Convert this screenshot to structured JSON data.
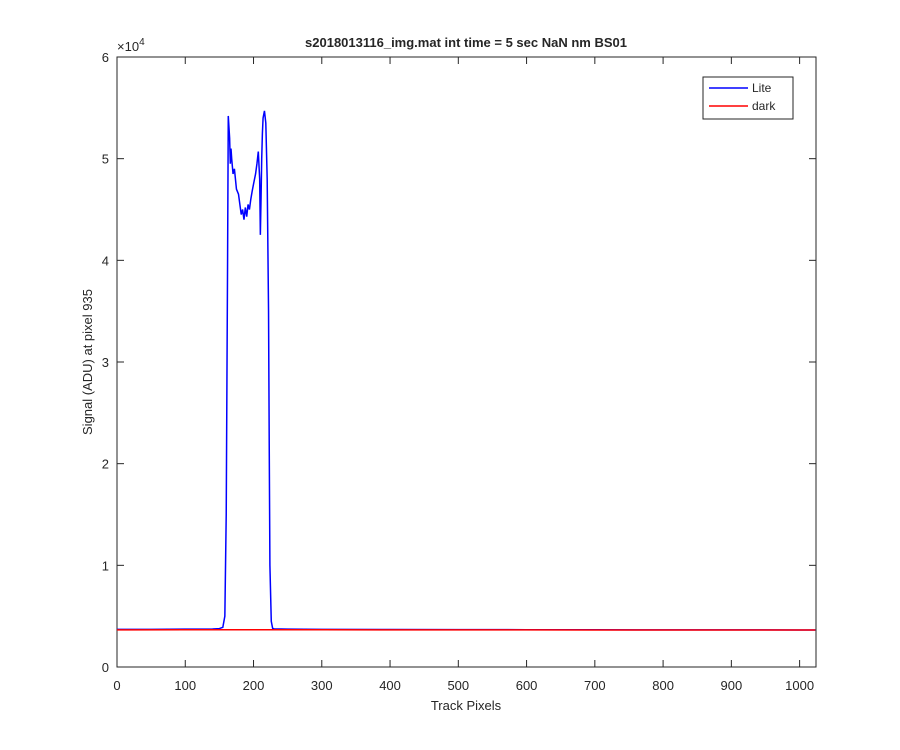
{
  "chart_data": {
    "type": "line",
    "title": "s2018013116_img.mat int time = 5 sec  NaN nm BS01",
    "x_label": "Track Pixels",
    "y_label": "Signal (ADU) at pixel 935",
    "y_multiplier": {
      "base": "×10",
      "exponent": "4"
    },
    "xlim": [
      0,
      1024
    ],
    "xticks": [
      0,
      100,
      200,
      300,
      400,
      500,
      600,
      700,
      800,
      900,
      1000
    ],
    "ylim": [
      0,
      60000
    ],
    "yticks": [
      {
        "value": 0,
        "label": "0"
      },
      {
        "value": 10000,
        "label": "1"
      },
      {
        "value": 20000,
        "label": "2"
      },
      {
        "value": 30000,
        "label": "3"
      },
      {
        "value": 40000,
        "label": "4"
      },
      {
        "value": 50000,
        "label": "5"
      },
      {
        "value": 60000,
        "label": "6"
      }
    ],
    "grid": false,
    "legend": "top-right",
    "series": [
      {
        "name": "Lite",
        "color": "#0000ff",
        "x": [
          0,
          50,
          100,
          140,
          150,
          155,
          158,
          160,
          162,
          163,
          165,
          166,
          167,
          168,
          170,
          172,
          175,
          178,
          180,
          182,
          184,
          186,
          188,
          190,
          192,
          194,
          196,
          198,
          200,
          203,
          205,
          207,
          209,
          210,
          211,
          212,
          213,
          214,
          216,
          218,
          220,
          222,
          223,
          224,
          226,
          228,
          230,
          250,
          300,
          400,
          500,
          600,
          700,
          800,
          900,
          1000,
          1023
        ],
        "values": [
          3700,
          3700,
          3720,
          3740,
          3780,
          3900,
          5000,
          15000,
          40000,
          54200,
          52000,
          49500,
          51000,
          50000,
          48500,
          49000,
          47000,
          46500,
          45500,
          44500,
          45000,
          44000,
          45200,
          44300,
          45500,
          45000,
          46000,
          46800,
          47500,
          48500,
          49500,
          50700,
          48000,
          42500,
          46000,
          50000,
          52500,
          54000,
          54700,
          53500,
          48000,
          35000,
          22000,
          10000,
          4500,
          3800,
          3750,
          3720,
          3700,
          3690,
          3680,
          3670,
          3660,
          3650,
          3650,
          3640,
          3640
        ]
      },
      {
        "name": "dark",
        "color": "#ff0000",
        "x": [
          0,
          100,
          200,
          300,
          400,
          500,
          600,
          700,
          800,
          900,
          1000,
          1023
        ],
        "values": [
          3650,
          3660,
          3660,
          3660,
          3650,
          3650,
          3650,
          3640,
          3640,
          3640,
          3640,
          3640
        ]
      }
    ]
  }
}
